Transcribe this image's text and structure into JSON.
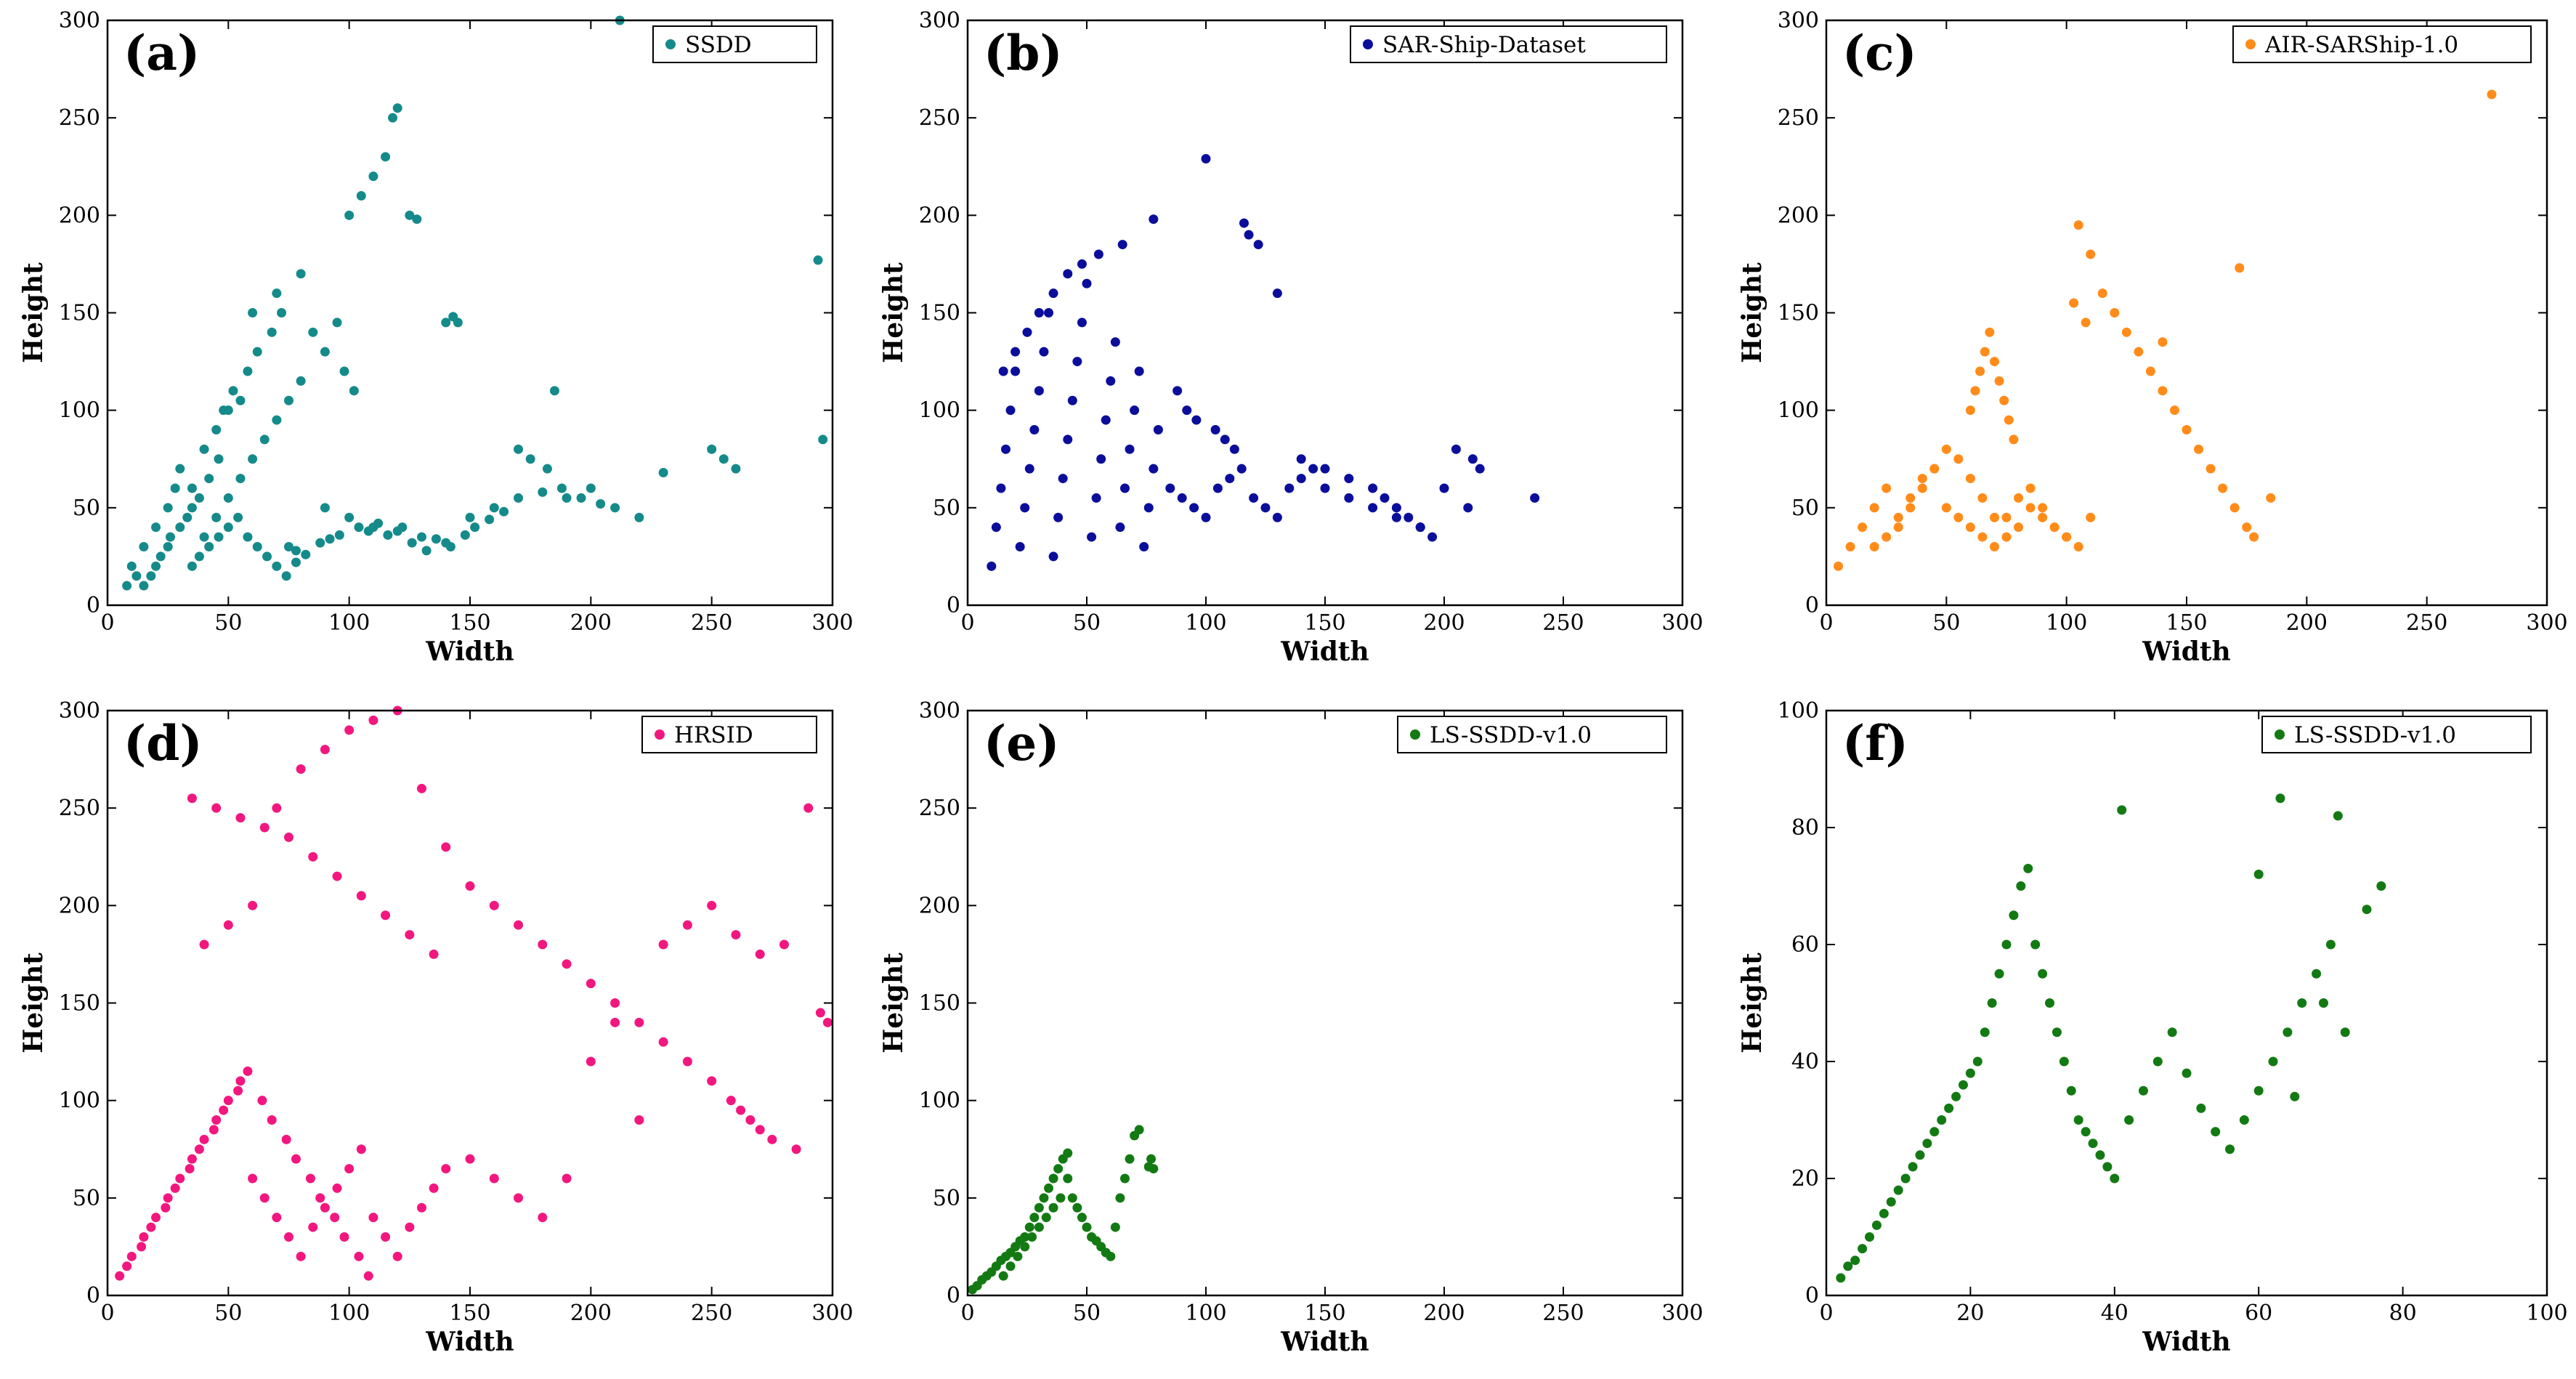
{
  "chart_data": [
    {
      "type": "scatter",
      "panel_label": "(a)",
      "title": "",
      "legend": "SSDD",
      "color": "#158a8a",
      "xlabel": "Width",
      "ylabel": "Height",
      "xlim": [
        0,
        300
      ],
      "ylim": [
        0,
        300
      ],
      "xticks": [
        0,
        50,
        100,
        150,
        200,
        250,
        300
      ],
      "yticks": [
        0,
        50,
        100,
        150,
        200,
        250,
        300
      ],
      "x_tick_labels": [
        "0",
        "50",
        "100",
        "150",
        "200",
        "250",
        "300"
      ],
      "y_tick_labels": [
        "0",
        "50",
        "100",
        "150",
        "200",
        "250",
        "300"
      ],
      "legend_position": "top-right",
      "x": [
        20,
        25,
        30,
        35,
        28,
        40,
        45,
        50,
        55,
        60,
        65,
        70,
        75,
        80,
        48,
        52,
        58,
        62,
        68,
        72,
        15,
        18,
        22,
        26,
        33,
        38,
        42,
        46,
        90,
        100,
        110,
        120,
        130,
        140,
        150,
        160,
        170,
        180,
        190,
        200,
        210,
        220,
        100,
        105,
        110,
        115,
        118,
        120,
        125,
        128,
        60,
        70,
        80,
        85,
        90,
        95,
        98,
        102,
        40,
        45,
        50,
        55,
        30,
        35,
        25,
        20,
        15,
        10,
        12,
        8,
        294,
        296,
        250,
        255,
        260,
        230,
        212,
        185,
        140,
        143,
        145,
        75,
        78,
        82,
        88,
        92,
        96,
        104,
        108,
        112,
        116,
        122,
        126,
        132,
        136,
        142,
        148,
        152,
        158,
        164,
        170,
        175,
        182,
        188,
        196,
        204,
        35,
        38,
        42,
        46,
        50,
        54,
        58,
        62,
        66,
        70,
        74,
        78
      ],
      "y": [
        20,
        30,
        40,
        50,
        60,
        35,
        45,
        55,
        65,
        75,
        85,
        95,
        105,
        115,
        100,
        110,
        120,
        130,
        140,
        150,
        10,
        15,
        25,
        35,
        45,
        55,
        65,
        75,
        50,
        45,
        40,
        38,
        35,
        32,
        45,
        50,
        55,
        58,
        55,
        60,
        50,
        45,
        200,
        210,
        220,
        230,
        250,
        255,
        200,
        198,
        150,
        160,
        170,
        140,
        130,
        145,
        120,
        110,
        80,
        90,
        100,
        105,
        70,
        60,
        50,
        40,
        30,
        20,
        15,
        10,
        177,
        85,
        80,
        75,
        70,
        68,
        300,
        110,
        145,
        148,
        145,
        30,
        28,
        26,
        32,
        34,
        36,
        40,
        38,
        42,
        36,
        40,
        32,
        28,
        34,
        30,
        36,
        40,
        44,
        48,
        80,
        75,
        70,
        60,
        55,
        52,
        20,
        25,
        30,
        35,
        40,
        45,
        35,
        30,
        25,
        20,
        15,
        22
      ]
    },
    {
      "type": "scatter",
      "panel_label": "(b)",
      "title": "",
      "legend": "SAR-Ship-Dataset",
      "color": "#0b0e9a",
      "xlabel": "Width",
      "ylabel": "Height",
      "xlim": [
        0,
        300
      ],
      "ylim": [
        0,
        300
      ],
      "xticks": [
        0,
        50,
        100,
        150,
        200,
        250,
        300
      ],
      "yticks": [
        0,
        50,
        100,
        150,
        200,
        250,
        300
      ],
      "x_tick_labels": [
        "0",
        "50",
        "100",
        "150",
        "200",
        "250",
        "300"
      ],
      "y_tick_labels": [
        "0",
        "50",
        "100",
        "150",
        "200",
        "250",
        "300"
      ],
      "legend_position": "top-right",
      "x": [
        10,
        12,
        14,
        16,
        18,
        20,
        22,
        24,
        26,
        28,
        30,
        32,
        34,
        36,
        38,
        40,
        42,
        44,
        46,
        48,
        50,
        52,
        54,
        56,
        58,
        60,
        62,
        64,
        66,
        68,
        70,
        72,
        74,
        76,
        78,
        80,
        85,
        90,
        95,
        100,
        105,
        110,
        115,
        120,
        125,
        130,
        135,
        140,
        145,
        150,
        160,
        170,
        180,
        190,
        200,
        210,
        215,
        238,
        100,
        116,
        78,
        65,
        55,
        48,
        42,
        36,
        30,
        25,
        20,
        15,
        118,
        122,
        130,
        88,
        92,
        96,
        104,
        108,
        112,
        140,
        150,
        160,
        170,
        175,
        180,
        185,
        190,
        195,
        205,
        212
      ],
      "y": [
        20,
        40,
        60,
        80,
        100,
        120,
        30,
        50,
        70,
        90,
        110,
        130,
        150,
        25,
        45,
        65,
        85,
        105,
        125,
        145,
        165,
        35,
        55,
        75,
        95,
        115,
        135,
        40,
        60,
        80,
        100,
        120,
        30,
        50,
        70,
        90,
        60,
        55,
        50,
        45,
        60,
        65,
        70,
        55,
        50,
        45,
        60,
        65,
        70,
        60,
        55,
        50,
        45,
        40,
        60,
        50,
        70,
        55,
        229,
        196,
        198,
        185,
        180,
        175,
        170,
        160,
        150,
        140,
        130,
        120,
        190,
        185,
        160,
        110,
        100,
        95,
        90,
        85,
        80,
        75,
        70,
        65,
        60,
        55,
        50,
        45,
        40,
        35,
        80,
        75
      ]
    },
    {
      "type": "scatter",
      "panel_label": "(c)",
      "title": "",
      "legend": "AIR-SARShip-1.0",
      "color": "#ff8c1a",
      "xlabel": "Width",
      "ylabel": "Height",
      "xlim": [
        0,
        300
      ],
      "ylim": [
        0,
        300
      ],
      "xticks": [
        0,
        50,
        100,
        150,
        200,
        250,
        300
      ],
      "yticks": [
        0,
        50,
        100,
        150,
        200,
        250,
        300
      ],
      "x_tick_labels": [
        "0",
        "50",
        "100",
        "150",
        "200",
        "250",
        "300"
      ],
      "y_tick_labels": [
        "0",
        "50",
        "100",
        "150",
        "200",
        "250",
        "300"
      ],
      "legend_position": "top-right",
      "x": [
        5,
        10,
        15,
        20,
        25,
        30,
        35,
        40,
        45,
        50,
        55,
        60,
        65,
        70,
        75,
        80,
        85,
        90,
        95,
        100,
        105,
        110,
        20,
        25,
        30,
        35,
        40,
        45,
        50,
        55,
        60,
        65,
        70,
        75,
        80,
        85,
        90,
        95,
        100,
        60,
        62,
        64,
        66,
        68,
        70,
        72,
        74,
        76,
        78,
        105,
        110,
        115,
        120,
        125,
        130,
        135,
        140,
        145,
        150,
        155,
        160,
        165,
        170,
        175,
        178,
        185,
        277,
        103,
        108,
        140,
        172
      ],
      "y": [
        20,
        30,
        40,
        50,
        60,
        45,
        55,
        65,
        70,
        50,
        45,
        40,
        35,
        30,
        45,
        55,
        60,
        50,
        40,
        35,
        30,
        45,
        30,
        35,
        40,
        50,
        60,
        70,
        80,
        75,
        65,
        55,
        45,
        35,
        40,
        50,
        45,
        40,
        35,
        100,
        110,
        120,
        130,
        140,
        125,
        115,
        105,
        95,
        85,
        195,
        180,
        160,
        150,
        140,
        130,
        120,
        110,
        100,
        90,
        80,
        70,
        60,
        50,
        40,
        35,
        55,
        262,
        155,
        145,
        135,
        173
      ]
    },
    {
      "type": "scatter",
      "panel_label": "(d)",
      "title": "",
      "legend": "HRSID",
      "color": "#f2177f",
      "xlabel": "Width",
      "ylabel": "Height",
      "xlim": [
        0,
        300
      ],
      "ylim": [
        0,
        300
      ],
      "xticks": [
        0,
        50,
        100,
        150,
        200,
        250,
        300
      ],
      "yticks": [
        0,
        50,
        100,
        150,
        200,
        250,
        300
      ],
      "x_tick_labels": [
        "0",
        "50",
        "100",
        "150",
        "200",
        "250",
        "300"
      ],
      "y_tick_labels": [
        "0",
        "50",
        "100",
        "150",
        "200",
        "250",
        "300"
      ],
      "legend_position": "top-right",
      "x": [
        5,
        10,
        15,
        20,
        25,
        30,
        35,
        40,
        45,
        50,
        55,
        60,
        65,
        70,
        75,
        80,
        85,
        90,
        95,
        100,
        105,
        110,
        115,
        120,
        125,
        130,
        135,
        140,
        8,
        14,
        18,
        24,
        28,
        34,
        38,
        44,
        48,
        54,
        58,
        64,
        68,
        74,
        78,
        84,
        88,
        94,
        98,
        104,
        108,
        150,
        160,
        170,
        180,
        190,
        200,
        210,
        220,
        230,
        240,
        250,
        260,
        270,
        280,
        290,
        295,
        298,
        40,
        50,
        60,
        70,
        80,
        90,
        100,
        110,
        120,
        130,
        140,
        150,
        160,
        170,
        180,
        190,
        200,
        210,
        220,
        230,
        240,
        250,
        258,
        262,
        266,
        270,
        275,
        285,
        35,
        45,
        55,
        65,
        75,
        85,
        95,
        105,
        115,
        125,
        135
      ],
      "y": [
        10,
        20,
        30,
        40,
        50,
        60,
        70,
        80,
        90,
        100,
        110,
        60,
        50,
        40,
        30,
        20,
        35,
        45,
        55,
        65,
        75,
        40,
        30,
        20,
        35,
        45,
        55,
        65,
        15,
        25,
        35,
        45,
        55,
        65,
        75,
        85,
        95,
        105,
        115,
        100,
        90,
        80,
        70,
        60,
        50,
        40,
        30,
        20,
        10,
        70,
        60,
        50,
        40,
        60,
        120,
        140,
        90,
        180,
        190,
        200,
        185,
        175,
        180,
        250,
        145,
        140,
        180,
        190,
        200,
        250,
        270,
        280,
        290,
        295,
        300,
        260,
        230,
        210,
        200,
        190,
        180,
        170,
        160,
        150,
        140,
        130,
        120,
        110,
        100,
        95,
        90,
        85,
        80,
        75,
        255,
        250,
        245,
        240,
        235,
        225,
        215,
        205,
        195,
        185,
        175
      ]
    },
    {
      "type": "scatter",
      "panel_label": "(e)",
      "title": "",
      "legend": "LS-SSDD-v1.0",
      "color": "#137a13",
      "xlabel": "Width",
      "ylabel": "Height",
      "xlim": [
        0,
        300
      ],
      "ylim": [
        0,
        300
      ],
      "xticks": [
        0,
        50,
        100,
        150,
        200,
        250,
        300
      ],
      "yticks": [
        0,
        50,
        100,
        150,
        200,
        250,
        300
      ],
      "x_tick_labels": [
        "0",
        "50",
        "100",
        "150",
        "200",
        "250",
        "300"
      ],
      "y_tick_labels": [
        "0",
        "50",
        "100",
        "150",
        "200",
        "250",
        "300"
      ],
      "legend_position": "top-right",
      "x": [
        2,
        4,
        6,
        8,
        10,
        12,
        14,
        16,
        18,
        20,
        22,
        24,
        26,
        28,
        30,
        32,
        34,
        36,
        38,
        40,
        42,
        44,
        46,
        48,
        50,
        52,
        54,
        56,
        58,
        60,
        62,
        64,
        66,
        68,
        70,
        72,
        76,
        77,
        78,
        15,
        18,
        21,
        24,
        27,
        30,
        33,
        36,
        39,
        42
      ],
      "y": [
        3,
        5,
        8,
        10,
        12,
        15,
        18,
        20,
        22,
        25,
        28,
        30,
        35,
        40,
        45,
        50,
        55,
        60,
        65,
        70,
        60,
        50,
        45,
        40,
        35,
        30,
        28,
        25,
        22,
        20,
        35,
        50,
        60,
        70,
        82,
        85,
        66,
        70,
        65,
        10,
        15,
        20,
        25,
        30,
        35,
        40,
        45,
        50,
        73
      ]
    },
    {
      "type": "scatter",
      "panel_label": "(f)",
      "title": "",
      "legend": "LS-SSDD-v1.0",
      "color": "#137a13",
      "xlabel": "Width",
      "ylabel": "Height",
      "xlim": [
        0,
        100
      ],
      "ylim": [
        0,
        100
      ],
      "xticks": [
        0,
        20,
        40,
        60,
        80,
        100
      ],
      "yticks": [
        0,
        20,
        40,
        60,
        80,
        100
      ],
      "x_tick_labels": [
        "0",
        "20",
        "40",
        "60",
        "80",
        "100"
      ],
      "y_tick_labels": [
        "0",
        "20",
        "40",
        "60",
        "80",
        "100"
      ],
      "legend_position": "top-right",
      "x": [
        2,
        3,
        4,
        5,
        6,
        7,
        8,
        9,
        10,
        11,
        12,
        13,
        14,
        15,
        16,
        17,
        18,
        19,
        20,
        21,
        22,
        23,
        24,
        25,
        26,
        27,
        28,
        29,
        30,
        31,
        32,
        33,
        34,
        35,
        36,
        37,
        38,
        39,
        40,
        42,
        44,
        46,
        48,
        50,
        52,
        54,
        56,
        58,
        60,
        62,
        64,
        66,
        68,
        70,
        72,
        75,
        77,
        41,
        63,
        71,
        60,
        69,
        65
      ],
      "y": [
        3,
        5,
        6,
        8,
        10,
        12,
        14,
        16,
        18,
        20,
        22,
        24,
        26,
        28,
        30,
        32,
        34,
        36,
        38,
        40,
        45,
        50,
        55,
        60,
        65,
        70,
        73,
        60,
        55,
        50,
        45,
        40,
        35,
        30,
        28,
        26,
        24,
        22,
        20,
        30,
        35,
        40,
        45,
        38,
        32,
        28,
        25,
        30,
        35,
        40,
        45,
        50,
        55,
        60,
        45,
        66,
        70,
        83,
        85,
        82,
        72,
        50,
        34
      ]
    }
  ]
}
